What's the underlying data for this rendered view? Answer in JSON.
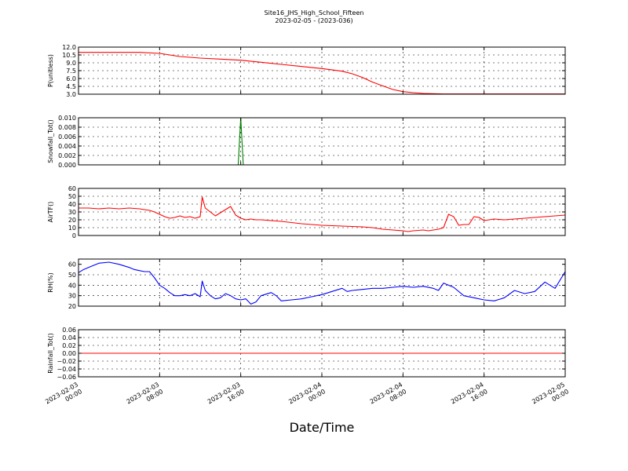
{
  "figure": {
    "title": "Site16_JHS_High_School_Fifteen",
    "subtitle": "2023-02-05 - (2023-036)",
    "xlabel": "Date/Time"
  },
  "chart_data": {
    "type": "line",
    "x_axis": {
      "start": "2023-02-03 00:00",
      "end": "2023-02-05 00:00",
      "unit": "hours",
      "range_hours": [
        0,
        48
      ],
      "ticks_hours": [
        0,
        8,
        16,
        24,
        32,
        40,
        48
      ],
      "tick_labels": [
        [
          "2023-02-03",
          "00:00"
        ],
        [
          "2023-02-03",
          "08:00"
        ],
        [
          "2023-02-03",
          "16:00"
        ],
        [
          "2023-02-04",
          "00:00"
        ],
        [
          "2023-02-04",
          "08:00"
        ],
        [
          "2023-02-04",
          "16:00"
        ],
        [
          "2023-02-05",
          "00:00"
        ]
      ],
      "grid": true
    },
    "panels": [
      {
        "name": "pressure",
        "ylabel": "P(unitless)",
        "ylim": [
          3.0,
          12.0
        ],
        "yticks": [
          3.0,
          4.5,
          6.0,
          7.5,
          9.0,
          10.5,
          12.0
        ],
        "ytick_labels": [
          "3.0",
          "4.5",
          "6.0",
          "7.5",
          "9.0",
          "10.5",
          "12.0"
        ],
        "color": "#ff0000",
        "x": [
          0,
          2,
          4,
          6,
          8,
          9,
          10,
          12,
          14,
          16,
          18,
          20,
          22,
          24,
          26,
          27,
          28,
          29,
          30,
          31,
          32,
          33,
          34,
          36,
          38,
          40,
          44,
          48
        ],
        "y": [
          11.0,
          11.0,
          11.0,
          11.0,
          10.8,
          10.5,
          10.2,
          9.9,
          9.7,
          9.5,
          9.1,
          8.7,
          8.3,
          7.9,
          7.4,
          6.9,
          6.2,
          5.3,
          4.6,
          3.9,
          3.5,
          3.3,
          3.15,
          3.05,
          3.05,
          3.05,
          3.05,
          3.05
        ]
      },
      {
        "name": "snowfall",
        "ylabel": "Snowfall_Tot()",
        "ylim": [
          0.0,
          0.01
        ],
        "yticks": [
          0.0,
          0.002,
          0.004,
          0.006,
          0.008,
          0.01
        ],
        "ytick_labels": [
          "0.000",
          "0.002",
          "0.004",
          "0.006",
          "0.008",
          "0.010"
        ],
        "color": "#008000",
        "x": [
          0,
          15.75,
          16.0,
          16.25,
          48
        ],
        "y": [
          0,
          0,
          0.01,
          0,
          0
        ]
      },
      {
        "name": "airtemp",
        "ylabel": "AirTF()",
        "ylim": [
          0,
          60
        ],
        "yticks": [
          0,
          10,
          20,
          30,
          40,
          50,
          60
        ],
        "ytick_labels": [
          "0",
          "10",
          "20",
          "30",
          "40",
          "50",
          "60"
        ],
        "color": "#ff0000",
        "x": [
          0,
          1,
          2,
          3,
          4,
          5,
          6,
          7,
          7.5,
          8,
          8.5,
          9,
          9.5,
          10,
          10.5,
          11,
          11.5,
          12,
          12.2,
          12.5,
          13,
          13.5,
          14,
          14.5,
          15,
          15.5,
          16,
          16.5,
          17,
          17.5,
          18,
          20,
          22,
          24,
          26,
          28,
          29,
          30,
          31,
          32,
          32.5,
          33,
          34,
          34.5,
          35,
          35.5,
          36,
          36.5,
          37,
          37.5,
          38,
          38.5,
          39,
          39.5,
          40,
          41,
          42,
          43,
          44,
          45,
          46,
          47,
          48
        ],
        "y": [
          35,
          35,
          34,
          35,
          34,
          35,
          34,
          32,
          30,
          27,
          24,
          22,
          23,
          25,
          23,
          24,
          22,
          24,
          49,
          35,
          30,
          25,
          29,
          33,
          37,
          26,
          22,
          20,
          21,
          20,
          20,
          18,
          15,
          13,
          12,
          11,
          10,
          8,
          7,
          6,
          5,
          6,
          7,
          6,
          7,
          8,
          10,
          27,
          24,
          13,
          14,
          14,
          24,
          23,
          19,
          21,
          20,
          21,
          22,
          23,
          24,
          25,
          26
        ]
      },
      {
        "name": "rh",
        "ylabel": "RH(%)",
        "ylim": [
          20,
          65
        ],
        "yticks": [
          20,
          30,
          40,
          50,
          60
        ],
        "ytick_labels": [
          "20",
          "30",
          "40",
          "50",
          "60"
        ],
        "color": "#0000ff",
        "x": [
          0,
          0.5,
          1,
          1.5,
          2,
          3,
          4,
          5,
          5.5,
          6,
          6.5,
          7,
          7.5,
          8,
          8.5,
          9,
          9.5,
          10,
          10.5,
          11,
          11.5,
          12,
          12.2,
          12.5,
          13,
          13.5,
          14,
          14.5,
          15,
          15.5,
          16,
          16.5,
          17,
          17.5,
          18,
          19,
          19.5,
          20,
          21,
          22,
          23,
          24,
          25,
          26,
          26.5,
          27,
          28,
          29,
          30,
          31,
          32,
          33,
          34,
          35,
          35.5,
          36,
          37,
          38,
          39,
          40,
          41,
          42,
          43,
          44,
          45,
          46,
          47,
          48
        ],
        "y": [
          52,
          55,
          57,
          59,
          61,
          62,
          60,
          57,
          55,
          54,
          53,
          53,
          47,
          40,
          37,
          33,
          30,
          30,
          31,
          30,
          32,
          29,
          44,
          35,
          30,
          27,
          28,
          32,
          30,
          27,
          26,
          27,
          22,
          24,
          30,
          33,
          30,
          25,
          26,
          27,
          29,
          31,
          34,
          37,
          34,
          35,
          36,
          37,
          37,
          38,
          39,
          38,
          39,
          37,
          35,
          42,
          38,
          30,
          28,
          26,
          25,
          28,
          35,
          32,
          34,
          43,
          37,
          53
        ]
      },
      {
        "name": "rainfall",
        "ylabel": "Rainfall_Tot()",
        "ylim": [
          -0.06,
          0.06
        ],
        "yticks": [
          -0.06,
          -0.04,
          -0.02,
          0.0,
          0.02,
          0.04,
          0.06
        ],
        "ytick_labels": [
          "−0.06",
          "−0.04",
          "−0.02",
          "0.00",
          "0.02",
          "0.04",
          "0.06"
        ],
        "color": "#ff0000",
        "x": [
          0,
          48
        ],
        "y": [
          0,
          0
        ]
      }
    ]
  }
}
